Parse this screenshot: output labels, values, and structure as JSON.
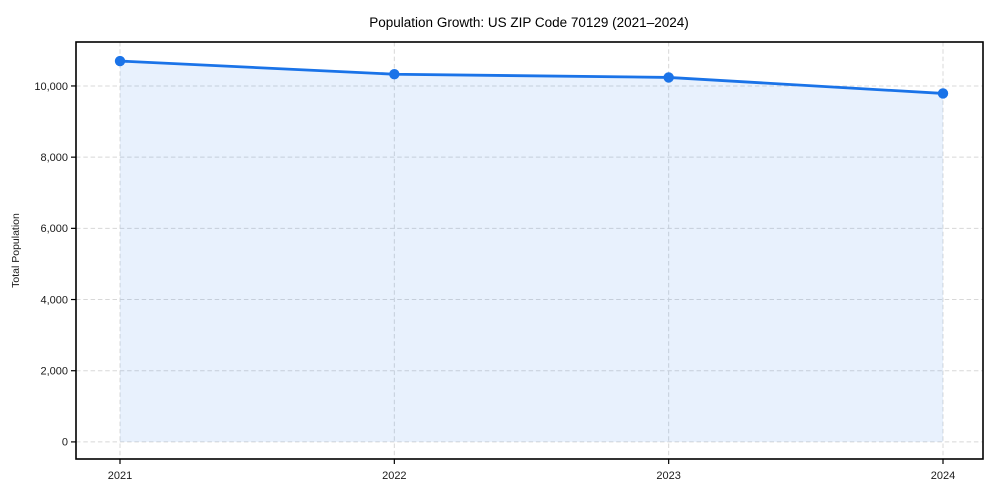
{
  "chart_data": {
    "type": "line",
    "title": "Population Growth: US ZIP Code 70129 (2021–2024)",
    "xlabel": "",
    "ylabel": "Total Population",
    "categories": [
      "2021",
      "2022",
      "2023",
      "2024"
    ],
    "series": [
      {
        "name": "Total Population",
        "values": [
          10700,
          10330,
          10240,
          9790
        ]
      }
    ],
    "yticks": [
      0,
      2000,
      4000,
      6000,
      8000,
      10000
    ],
    "ylim": [
      -480,
      11235
    ],
    "grid": true,
    "grid_style": "dashed",
    "legend": false,
    "area_fill": true,
    "marker": "circle",
    "colors": {
      "line": "#1a73e8",
      "marker": "#1a73e8",
      "area": "rgba(26,115,232,0.10)",
      "grid": "#d8d8d8",
      "axis": "#000000",
      "text": "#1a1a1a",
      "background": "#ffffff"
    }
  }
}
